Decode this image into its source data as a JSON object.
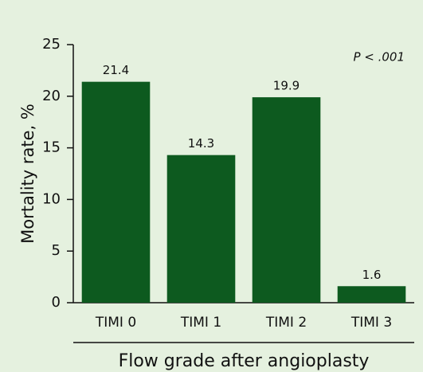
{
  "chart_data": {
    "type": "bar",
    "y_label": "Mortality rate, %",
    "x_label": "Flow grade after angioplasty",
    "annotation": "P < .001",
    "categories": [
      "TIMI 0",
      "TIMI 1",
      "TIMI 2",
      "TIMI 3"
    ],
    "values": [
      21.4,
      14.3,
      19.9,
      1.6
    ],
    "color": "#0d5a1f",
    "ylim": [
      0,
      25
    ],
    "yticks": [
      0,
      5,
      10,
      15,
      20,
      25
    ]
  }
}
